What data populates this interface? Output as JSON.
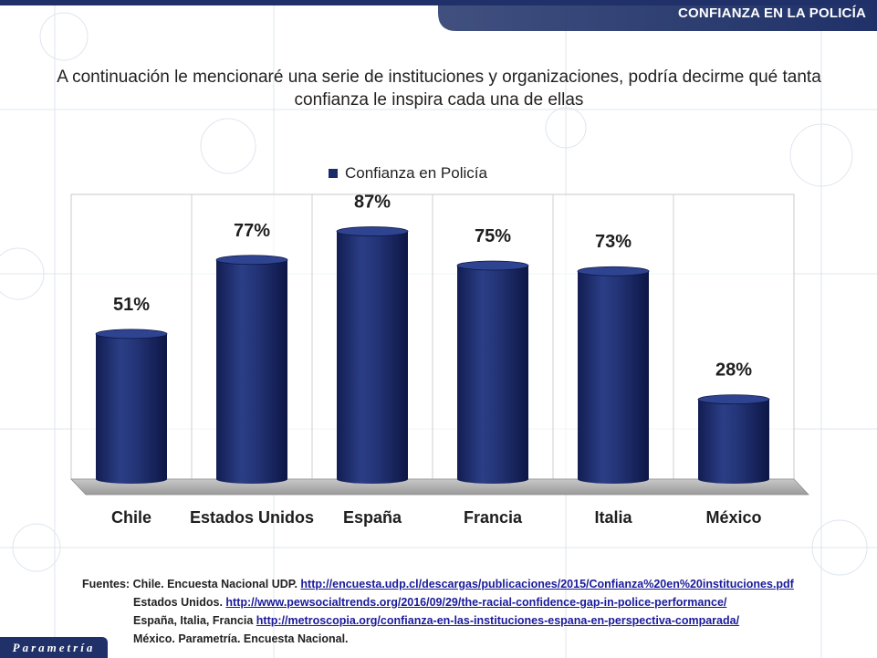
{
  "header": {
    "title": "CONFIANZA EN LA POLICÍA"
  },
  "question": "A continuación le mencionaré una serie de instituciones y organizaciones, podría decirme qué tanta confianza le inspira cada una de ellas",
  "legend": {
    "label": "Confianza en Policía"
  },
  "chart_data": {
    "type": "bar",
    "categories": [
      "Chile",
      "Estados Unidos",
      "España",
      "Francia",
      "Italia",
      "México"
    ],
    "series": [
      {
        "name": "Confianza en Policía",
        "values": [
          51,
          77,
          87,
          75,
          73,
          28
        ]
      }
    ],
    "value_labels": [
      "51%",
      "77%",
      "87%",
      "75%",
      "73%",
      "28%"
    ],
    "ylim": [
      0,
      100
    ],
    "grid": false,
    "legend_position": "top",
    "colors": {
      "bar": "#1b2a6b",
      "bar_highlight": "#3a4f9a"
    }
  },
  "sources": {
    "lead": "Fuentes:",
    "rows": [
      {
        "label": "Chile. Encuesta Nacional UDP.",
        "link": "http://encuesta.udp.cl/descargas/publicaciones/2015/Confianza%20en%20instituciones.pdf"
      },
      {
        "label": "Estados Unidos.",
        "link": "http://www.pewsocialtrends.org/2016/09/29/the-racial-confidence-gap-in-police-performance/"
      },
      {
        "label": "España, Italia, Francia",
        "link": "http://metroscopia.org/confianza-en-las-instituciones-espana-en-perspectiva-comparada/"
      },
      {
        "label": "México. Parametría. Encuesta Nacional.",
        "link": ""
      }
    ]
  },
  "brand": "Parametría",
  "colors": {
    "header_bar": "#1f3168",
    "accent": "#1b2a6b"
  }
}
